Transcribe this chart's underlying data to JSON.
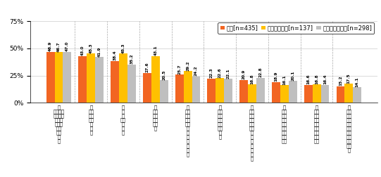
{
  "series_keys": [
    "全体[n=435]",
    "子どもがいる[n=137]",
    "子どもがいない[n=298]"
  ],
  "values_zentai": [
    46.9,
    43.0,
    38.4,
    27.6,
    25.7,
    22.3,
    20.9,
    18.9,
    16.6,
    15.2
  ],
  "values_iru": [
    46.7,
    45.3,
    45.3,
    43.1,
    29.2,
    22.6,
    16.8,
    16.1,
    16.8,
    17.5
  ],
  "values_inai": [
    47.0,
    41.9,
    35.2,
    20.5,
    24.2,
    22.1,
    22.8,
    20.1,
    16.4,
    14.1
  ],
  "colors": [
    "#f26522",
    "#ffc000",
    "#bfbfbf"
  ],
  "ylim": [
    0,
    75
  ],
  "yticks": [
    0,
    25,
    50,
    75
  ],
  "ytick_labels": [
    "0%",
    "25%",
    "50%",
    "75%"
  ],
  "bar_width": 0.26,
  "value_fontsize": 4.2,
  "xlabel_fontsize": 4.8,
  "ylabel_fontsize": 6.5,
  "legend_fontsize": 6.0,
  "cat_labels": [
    "仕\n仕フラと\n付区イの\nけ別ベ\nるをー\nしト\nっの\nか\nり",
    "だ\nいら\nなだ\nいら\n会\n社\nに",
    "仕\n事\nも\n大切\nに\nす\nる",
    "家\n大族\n切と\nにの\nも時\n間",
    "早\n管く\n理寝\nする\nるな\nど\n睡\n眠\nや\n休\n息\nを",
    "無\nよ駄\nう遣\nにい\nすを\nるし\nな\nい",
    "具\n参合\n加の\nし悪\nない\nいと\nき\nな\nど\nは\n無\n理\nに",
    "友\n大人\n切・\nに知\nす人\nると\n時過\n間ご\nもす",
    "パ\n大ー\n切ト\nにナ\nすー\nると\n時過\n間ご\nもす",
    "栄\nと養\nるバ\nよラ\nうン\nにス\nすを\nる考\n食え\n事た\nを"
  ]
}
